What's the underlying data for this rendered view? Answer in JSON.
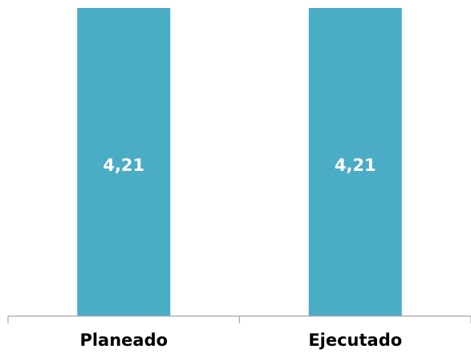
{
  "chart_data": {
    "type": "bar",
    "categories": [
      "Planeado",
      "Ejecutado"
    ],
    "values": [
      4.21,
      4.21
    ],
    "data_labels": [
      "4,21",
      "4,21"
    ],
    "title": "",
    "xlabel": "",
    "ylabel": "",
    "ylim": [
      0,
      4.21
    ],
    "grid": false,
    "legend": "none",
    "bar_color": "#4bacc6",
    "axis_color": "#a6a6a6"
  }
}
